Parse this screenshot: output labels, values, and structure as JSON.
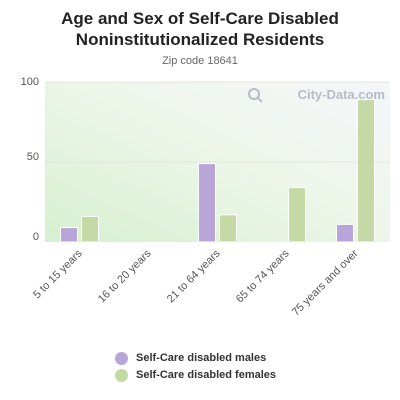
{
  "chart_data": {
    "type": "bar",
    "title": "Age and Sex of Self-Care Disabled Noninstitutionalized Residents",
    "subtitle": "Zip code 18641",
    "watermark": "City-Data.com",
    "categories": [
      "5 to 15 years",
      "16 to 20 years",
      "21 to 64 years",
      "65 to 74 years",
      "75 years and over"
    ],
    "series": [
      {
        "name": "Self-Care disabled males",
        "color": "#b9a6d9",
        "values": [
          9,
          0,
          49,
          0,
          11
        ]
      },
      {
        "name": "Self-Care disabled females",
        "color": "#c5d9a6",
        "values": [
          16,
          0,
          17,
          34,
          89
        ]
      }
    ],
    "ylim": [
      0,
      100
    ],
    "yticks": [
      0,
      50,
      100
    ],
    "grid": true,
    "legend_position": "bottom"
  }
}
